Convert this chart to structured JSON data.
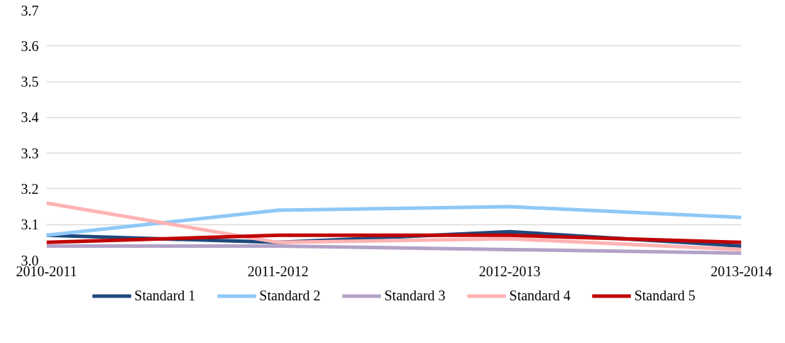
{
  "chart_data": {
    "type": "line",
    "categories": [
      "2010-2011",
      "2011-2012",
      "2012-2013",
      "2013-2014"
    ],
    "ylim": [
      3.0,
      3.7
    ],
    "yticks": [
      {
        "value": 3.0,
        "label": "3.0"
      },
      {
        "value": 3.1,
        "label": "3.1"
      },
      {
        "value": 3.2,
        "label": "3.2"
      },
      {
        "value": 3.3,
        "label": "3.3"
      },
      {
        "value": 3.4,
        "label": "3.4"
      },
      {
        "value": 3.5,
        "label": "3.5"
      },
      {
        "value": 3.6,
        "label": "3.6"
      },
      {
        "value": 3.7,
        "label": "3.7"
      }
    ],
    "grid": "y",
    "legend": "bottom",
    "marker": "none",
    "line_style": "solid",
    "series": [
      {
        "name": "Standard 1",
        "color": "#1f497d",
        "values": [
          3.07,
          3.05,
          3.08,
          3.04
        ]
      },
      {
        "name": "Standard 2",
        "color": "#8ec8f6",
        "values": [
          3.07,
          3.14,
          3.15,
          3.12
        ]
      },
      {
        "name": "Standard 3",
        "color": "#b3a2c7",
        "values": [
          3.04,
          3.04,
          3.03,
          3.02
        ]
      },
      {
        "name": "Standard 4",
        "color": "#ffb3b3",
        "values": [
          3.16,
          3.05,
          3.06,
          3.03
        ]
      },
      {
        "name": "Standard 5",
        "color": "#c00000",
        "values": [
          3.05,
          3.07,
          3.07,
          3.05
        ]
      }
    ]
  }
}
